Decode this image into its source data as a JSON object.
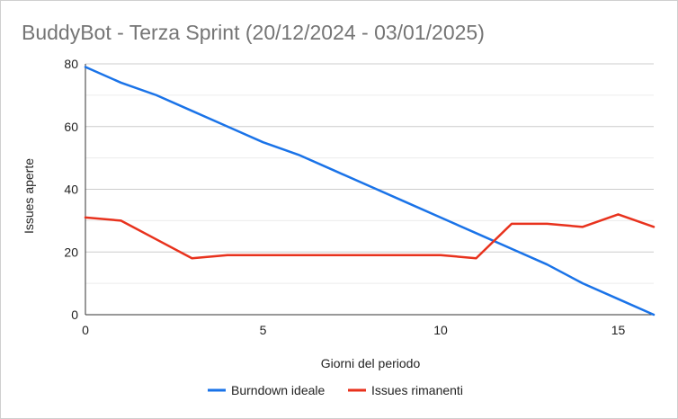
{
  "chart_data": {
    "type": "line",
    "title": "BuddyBot - Terza Sprint (20/12/2024 - 03/01/2025)",
    "xlabel": "Giorni del periodo",
    "ylabel": "Issues aperte",
    "xlim": [
      0,
      16
    ],
    "ylim": [
      0,
      80
    ],
    "xticks": [
      0,
      5,
      10,
      15
    ],
    "yticks": [
      0,
      20,
      40,
      60,
      80
    ],
    "grid": true,
    "legend_position": "bottom",
    "series": [
      {
        "name": "Burndown ideale",
        "color": "#1a73e8",
        "x": [
          0,
          1,
          2,
          3,
          4,
          5,
          6,
          7,
          8,
          9,
          10,
          11,
          12,
          13,
          14,
          15,
          16
        ],
        "values": [
          79,
          74,
          70,
          65,
          60,
          55,
          51,
          46,
          41,
          36,
          31,
          26,
          21,
          16,
          10,
          5,
          0
        ]
      },
      {
        "name": "Issues rimanenti",
        "color": "#e8321d",
        "x": [
          0,
          1,
          2,
          3,
          4,
          5,
          6,
          7,
          8,
          9,
          10,
          11,
          12,
          13,
          14,
          15,
          16
        ],
        "values": [
          31,
          30,
          24,
          18,
          19,
          19,
          19,
          19,
          19,
          19,
          19,
          18,
          29,
          29,
          28,
          32,
          28
        ]
      }
    ]
  }
}
